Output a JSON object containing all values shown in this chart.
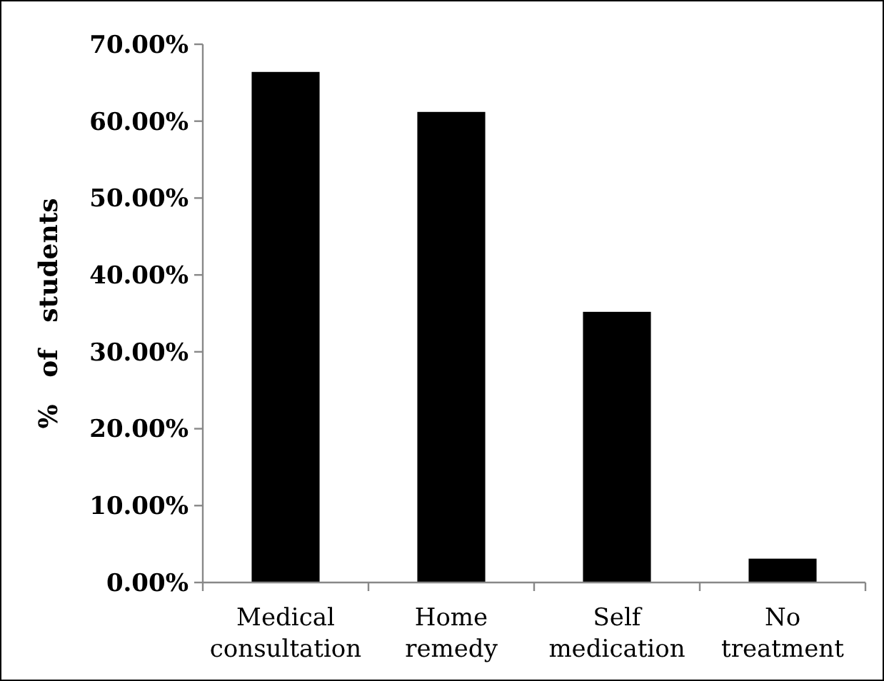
{
  "chart_data": {
    "type": "bar",
    "ylabel": "%   of   students",
    "categories": [
      "Medical consultation",
      "Home remedy",
      "Self medication",
      "No treatment"
    ],
    "values": [
      66.4,
      61.2,
      35.2,
      3.1
    ],
    "color": "#000000",
    "ylim": [
      0,
      70
    ],
    "yticks": [
      {
        "value": 0,
        "label": "0.00%"
      },
      {
        "value": 10,
        "label": "10.00%"
      },
      {
        "value": 20,
        "label": "20.00%"
      },
      {
        "value": 30,
        "label": "30.00%"
      },
      {
        "value": 40,
        "label": "40.00%"
      },
      {
        "value": 50,
        "label": "50.00%"
      },
      {
        "value": 60,
        "label": "60.00%"
      },
      {
        "value": 70,
        "label": "70.00%"
      }
    ],
    "grid": false
  }
}
